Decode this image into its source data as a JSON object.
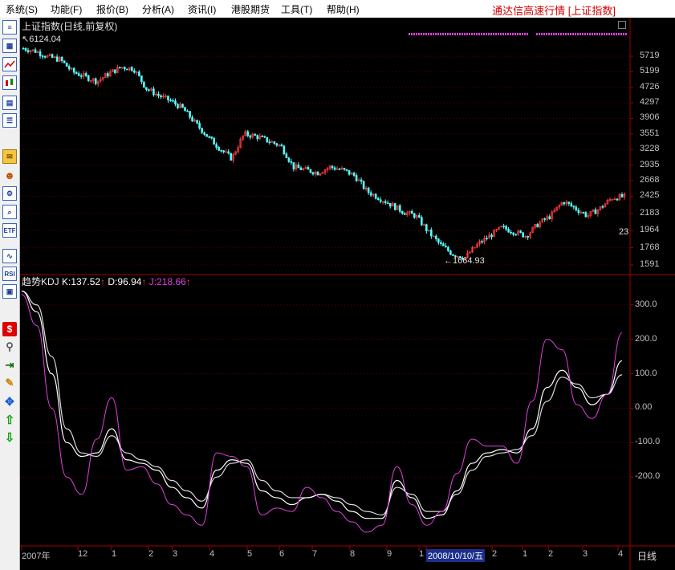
{
  "menu": {
    "items": [
      "系统(S)",
      "功能(F)",
      "报价(B)",
      "分析(A)",
      "资讯(I)",
      "港股期货",
      "工具(T)",
      "帮助(H)"
    ],
    "app_title": "通达信高速行情 [上证指数]"
  },
  "toolbar": {
    "icons": [
      "quote-list-icon",
      "table-icon",
      "line-chart-icon",
      "candle-chart-icon",
      "window-icon",
      "list-doc-icon",
      "mail-icon",
      "users-icon",
      "gear-clock-icon",
      "search-icon",
      "etf-icon",
      "wave-icon",
      "rsi-icon",
      "calendar-icon",
      "dollar-icon",
      "link-icon",
      "exit-icon",
      "pencil-icon",
      "move-icon",
      "arrow-up-icon",
      "arrow-down-icon"
    ],
    "etf_label": "ETF",
    "rsi_label": "RSI",
    "dollar_label": "$"
  },
  "colors": {
    "price_up": "#ff3c3c",
    "price_down": "#54ffff",
    "kdj_k": "#ffffff",
    "kdj_d": "#ffffff",
    "kdj_j": "#e040e0",
    "frame": "#a00000",
    "axis_text": "#c0c0c0"
  },
  "main_panel": {
    "title": "上证指数(日线,前复权)",
    "high_label": "6124.04",
    "low_label": "←1664.93",
    "right_edge_label": "23",
    "y_ticks": [
      "5719",
      "5199",
      "4726",
      "4297",
      "3906",
      "3551",
      "3228",
      "2935",
      "2668",
      "2425",
      "2183",
      "1964",
      "1768",
      "1591"
    ]
  },
  "kdj_panel": {
    "name": "趋势KDJ",
    "k_label": "K:137.52",
    "d_label": "D:96.94",
    "j_label": "J:218.66",
    "y_ticks": [
      "300.0",
      "200.0",
      "100.0",
      "0.00",
      "-100.0",
      "-200.0"
    ]
  },
  "x_axis": {
    "labels": [
      "2007年",
      "12",
      "1",
      "2",
      "3",
      "4",
      "5",
      "6",
      "7",
      "8",
      "9",
      "1",
      "2008/10/10/五",
      "2",
      "1",
      "2",
      "3",
      "4"
    ],
    "period_label": "日线"
  },
  "chart_data": [
    {
      "type": "candlestick",
      "title": "上证指数(日线,前复权)",
      "y_ticks": [
        5719,
        5199,
        4726,
        4297,
        3906,
        3551,
        3228,
        2935,
        2668,
        2425,
        2183,
        1964,
        1768,
        1591
      ],
      "annotations": [
        {
          "text": "6124.04",
          "meaning": "high"
        },
        {
          "text": "←1664.93",
          "meaning": "low"
        }
      ],
      "close_trend": [
        6000,
        5900,
        5700,
        5600,
        5200,
        5050,
        4900,
        5150,
        5350,
        5300,
        4700,
        4500,
        4350,
        4150,
        3800,
        3500,
        3250,
        3050,
        3550,
        3500,
        3400,
        3300,
        2900,
        2850,
        2800,
        2900,
        2850,
        2750,
        2500,
        2400,
        2300,
        2200,
        2150,
        1950,
        1800,
        1700,
        1664.93,
        1800,
        1900,
        2000,
        1950,
        1900,
        2050,
        2150,
        2350,
        2250,
        2150,
        2250,
        2400,
        2420
      ]
    },
    {
      "type": "line",
      "title": "趋势KDJ",
      "ylim": [
        -400,
        360
      ],
      "y_ticks": [
        300,
        200,
        100,
        0,
        -100,
        -200
      ],
      "series": [
        {
          "name": "K",
          "last": 137.52,
          "values": [
            340,
            280,
            100,
            -100,
            -140,
            -130,
            -60,
            -150,
            -160,
            -180,
            -230,
            -260,
            -290,
            -180,
            -150,
            -160,
            -240,
            -260,
            -280,
            -260,
            -250,
            -270,
            -300,
            -320,
            -320,
            -210,
            -260,
            -320,
            -310,
            -240,
            -160,
            -130,
            -120,
            -130,
            -60,
            60,
            110,
            60,
            10,
            40,
            137.52
          ]
        },
        {
          "name": "D",
          "last": 96.94,
          "values": [
            340,
            300,
            150,
            -60,
            -130,
            -140,
            -80,
            -130,
            -150,
            -170,
            -210,
            -240,
            -270,
            -200,
            -160,
            -150,
            -210,
            -240,
            -260,
            -260,
            -250,
            -260,
            -280,
            -300,
            -310,
            -230,
            -250,
            -300,
            -300,
            -250,
            -180,
            -140,
            -130,
            -120,
            -80,
            20,
            90,
            70,
            30,
            40,
            96.94
          ]
        },
        {
          "name": "J",
          "last": 218.66,
          "values": [
            330,
            240,
            0,
            -200,
            -250,
            -90,
            30,
            -180,
            -170,
            -220,
            -280,
            -310,
            -340,
            -130,
            -140,
            -170,
            -310,
            -290,
            -300,
            -230,
            -260,
            -300,
            -330,
            -360,
            -340,
            -170,
            -280,
            -340,
            -300,
            -190,
            -90,
            -110,
            -110,
            -160,
            20,
            200,
            170,
            10,
            -30,
            40,
            218.66
          ]
        }
      ]
    }
  ]
}
